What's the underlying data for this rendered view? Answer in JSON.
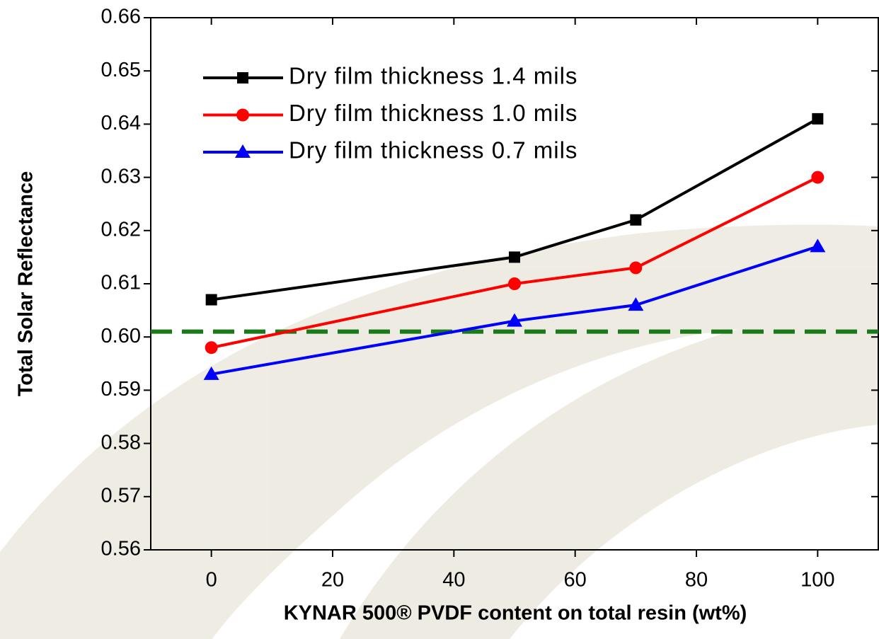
{
  "chart_data": {
    "type": "line",
    "x_label": "KYNAR 500® PVDF content on total resin (wt%)",
    "y_label": "Total Solar Reflectance",
    "x": [
      0,
      50,
      70,
      100
    ],
    "series": [
      {
        "name": "Dry film thickness 1.4 mils",
        "color": "#000000",
        "marker": "square",
        "values": [
          0.607,
          0.615,
          0.622,
          0.641
        ]
      },
      {
        "name": "Dry film thickness 1.0 mils",
        "color": "#ff0000",
        "marker": "circle",
        "values": [
          0.598,
          0.61,
          0.613,
          0.63
        ]
      },
      {
        "name": "Dry film thickness 0.7 mils",
        "color": "#0000ff",
        "marker": "triangle",
        "values": [
          0.593,
          0.603,
          0.606,
          0.617
        ]
      }
    ],
    "reference_line": {
      "value": 0.601,
      "color": "#1a7a1a"
    },
    "xlim": [
      -10,
      110
    ],
    "xticks": [
      0,
      20,
      40,
      60,
      80,
      100
    ],
    "ylim": [
      0.56,
      0.66
    ],
    "yticks": [
      0.56,
      0.57,
      0.58,
      0.59,
      {
        "value": 0.6,
        "label": "0.60"
      },
      0.61,
      0.62,
      0.63,
      0.64,
      0.65,
      0.66
    ],
    "legend": "upper left"
  }
}
